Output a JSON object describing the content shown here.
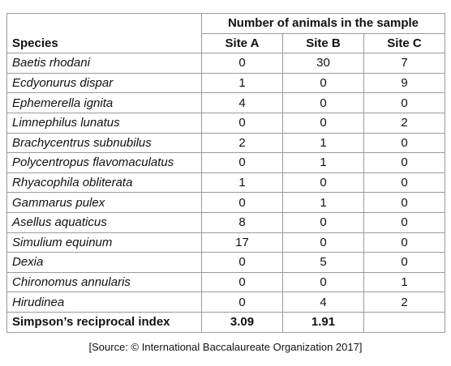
{
  "table": {
    "group_header": "Number of animals in the sample",
    "columns": [
      "Species",
      "Site A",
      "Site B",
      "Site C"
    ],
    "rows": [
      {
        "species": "Baetis rhodani",
        "counts": [
          0,
          30,
          7
        ]
      },
      {
        "species": "Ecdyonurus dispar",
        "counts": [
          1,
          0,
          9
        ]
      },
      {
        "species": "Ephemerella ignita",
        "counts": [
          4,
          0,
          0
        ]
      },
      {
        "species": "Limnephilus lunatus",
        "counts": [
          0,
          0,
          2
        ]
      },
      {
        "species": "Brachycentrus subnubilus",
        "counts": [
          2,
          1,
          0
        ]
      },
      {
        "species": "Polycentropus flavomaculatus",
        "counts": [
          0,
          1,
          0
        ]
      },
      {
        "species": "Rhyacophila obliterata",
        "counts": [
          1,
          0,
          0
        ]
      },
      {
        "species": "Gammarus pulex",
        "counts": [
          0,
          1,
          0
        ]
      },
      {
        "species": "Asellus aquaticus",
        "counts": [
          8,
          0,
          0
        ]
      },
      {
        "species": "Simulium equinum",
        "counts": [
          17,
          0,
          0
        ]
      },
      {
        "species": "Dexia",
        "counts": [
          0,
          5,
          0
        ]
      },
      {
        "species": "Chironomus annularis",
        "counts": [
          0,
          0,
          1
        ]
      },
      {
        "species": "Hirudinea",
        "counts": [
          0,
          4,
          2
        ]
      }
    ],
    "index_row": {
      "label": "Simpson’s reciprocal index",
      "values": [
        3.09,
        1.91
      ]
    }
  },
  "source": "[Source: © International Baccalaureate Organization 2017]"
}
